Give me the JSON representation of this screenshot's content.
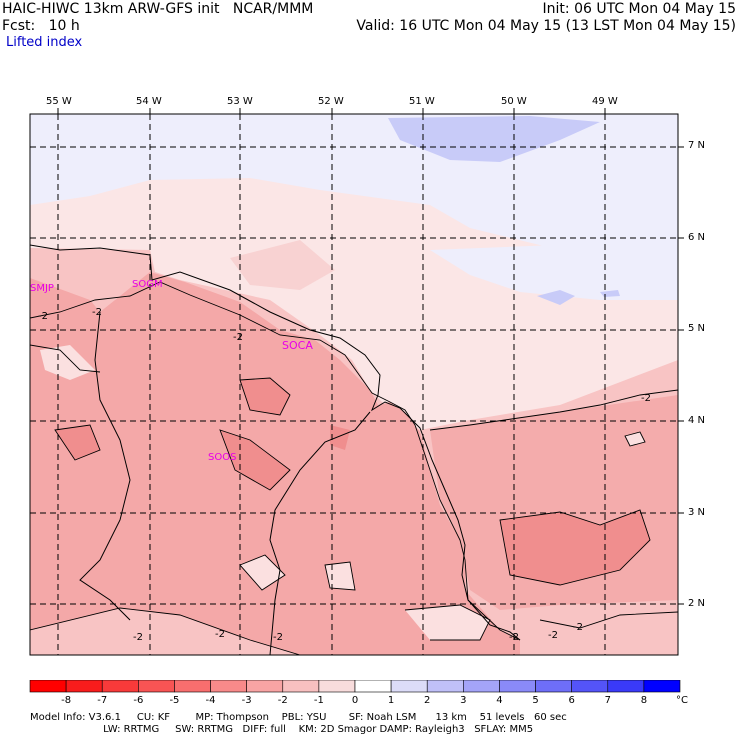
{
  "header": {
    "title_left": "HAIC-HIWC 13km ARW-GFS init   NCAR/MMM",
    "init": "Init: 06 UTC Mon 04 May 15",
    "fcst": "Fcst:   10 h",
    "valid": "Valid: 16 UTC Mon 04 May 15 (13 LST Mon 04 May 15)",
    "field": "Lifted index"
  },
  "map": {
    "lon_labels": [
      "55 W",
      "54 W",
      "53 W",
      "52 W",
      "51 W",
      "50 W",
      "49 W"
    ],
    "lat_labels": [
      "7 N",
      "6 N",
      "5 N",
      "4 N",
      "3 N",
      "2 N"
    ],
    "stations": [
      "SMJP",
      "SOGM",
      "SOCA",
      "SOOS"
    ],
    "contour_labels": [
      "-2",
      "-2",
      "-2",
      "-2",
      "-2",
      "-2",
      "-2",
      "-2",
      "-2",
      "-2"
    ],
    "colors": {
      "bg_light": "#fbe3e3",
      "mid_pink": "#f8c3c3",
      "red_pink": "#f4a6a6",
      "strong": "#f08e8e",
      "blue_light": "#eeeefc",
      "blue_mid": "#c6c8f8",
      "station": "#e800e8"
    }
  },
  "colorbar": {
    "ticks": [
      "-8",
      "-7",
      "-6",
      "-5",
      "-4",
      "-3",
      "-2",
      "-1",
      "0",
      "1",
      "2",
      "3",
      "4",
      "5",
      "6",
      "7",
      "8"
    ],
    "unit": "°C",
    "colors": [
      "#ff0000",
      "#f81c1c",
      "#f83a3a",
      "#f85454",
      "#f86e6e",
      "#f88a8a",
      "#f8a4a4",
      "#f8c0c0",
      "#f8dcdc",
      "#ffffff",
      "#dcdcf8",
      "#c0c0f8",
      "#a4a4f8",
      "#8a8af8",
      "#6e6ef8",
      "#5454f8",
      "#3a3af8",
      "#0000ff"
    ]
  },
  "footer": {
    "line1": "Model Info: V3.6.1     CU: KF        MP: Thompson    PBL: YSU       SF: Noah LSM      13 km    51 levels   60 sec",
    "line2": "                       LW: RRTMG     SW: RRTMG   DIFF: full    KM: 2D Smagor DAMP: Rayleigh3   SFLAY: MM5"
  }
}
